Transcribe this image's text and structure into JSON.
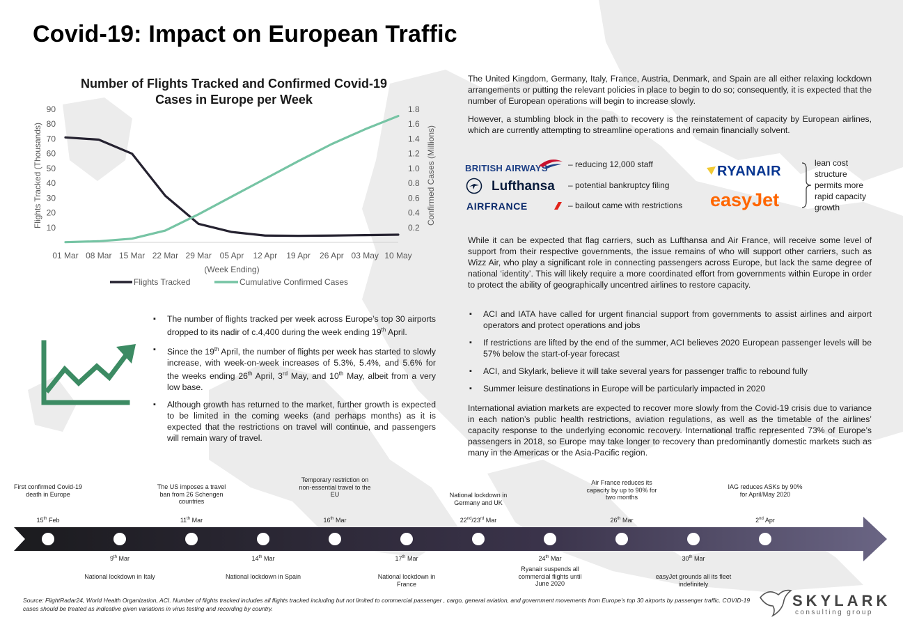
{
  "page": {
    "title": "Covid-19: Impact on European Traffic"
  },
  "chart_data": {
    "type": "line",
    "title": "Number of Flights Tracked and Confirmed Covid-19 Cases in Europe per Week",
    "title_lines": [
      "Number of Flights Tracked and Confirmed Covid-19",
      "Cases in Europe per Week"
    ],
    "xlabel": "(Week Ending)",
    "ylabel_left": "Flights Tracked (Thousands)",
    "ylabel_right": "Confirmed Cases (Millions)",
    "categories": [
      "01 Mar",
      "08 Mar",
      "15 Mar",
      "22 Mar",
      "29 Mar",
      "05 Apr",
      "12 Apr",
      "19 Apr",
      "26 Apr",
      "03 May",
      "10 May"
    ],
    "ylim_left": [
      0,
      90
    ],
    "yticks_left": [
      "",
      "10",
      "20",
      "30",
      "40",
      "50",
      "60",
      "70",
      "80",
      "90"
    ],
    "ylim_right": [
      0,
      1.8
    ],
    "yticks_right": [
      "",
      "0.2",
      "0.4",
      "0.6",
      "0.8",
      "1.0",
      "1.2",
      "1.4",
      "1.6",
      "1.8"
    ],
    "series": [
      {
        "name": "Flights Tracked",
        "axis": "left",
        "color": "#252230",
        "values": [
          71,
          69.5,
          60,
          31.5,
          12.5,
          7,
          4.6,
          4.4,
          4.6,
          4.9,
          5.2
        ]
      },
      {
        "name": "Cumulative Confirmed Cases",
        "axis": "right",
        "color": "#76c4a4",
        "values": [
          0.003,
          0.015,
          0.05,
          0.16,
          0.38,
          0.62,
          0.86,
          1.1,
          1.33,
          1.53,
          1.71
        ]
      }
    ],
    "legend_position": "bottom",
    "grid": false
  },
  "left_bullets": [
    {
      "text": "The number of flights tracked per week across Europe’s top 30 airports dropped to its nadir of c.4,400 during the week ending 19",
      "sup": "th",
      "tail": " April."
    },
    {
      "parts": [
        "Since the 19",
        "th",
        " April, the number of flights per week has started to slowly increase, with week-on-week increases of 5.3%, 5.4%, and 5.6% for the weeks ending 26",
        "th",
        " April, 3",
        "rd",
        " May, and 10",
        "th",
        " May, albeit from a very low base."
      ]
    },
    {
      "text": "Although growth has returned to the market, further growth is expected to be limited in the coming weeks (and perhaps months) as it is expected that the restrictions on travel will continue, and passengers will remain wary of travel."
    }
  ],
  "growth_icon": {
    "name": "growth-chart-icon",
    "color": "#3c8b63"
  },
  "right": {
    "para1": "The United Kingdom, Germany, Italy, France, Austria, Denmark, and Spain are all either relaxing lockdown arrangements or putting the relevant policies in place to begin to do so; consequently, it is expected that the number of European operations will begin to increase slowly.",
    "para2": "However, a stumbling block in the path to recovery is the reinstatement of capacity by European airlines, which are currently attempting to streamline operations and remain financially solvent.",
    "airlines": [
      {
        "logo": "BRITISH AIRWAYS",
        "desc": "– reducing 12,000 staff"
      },
      {
        "logo": "Lufthansa",
        "desc": "– potential bankruptcy filing"
      },
      {
        "logo": "AIRFRANCE",
        "desc": "– bailout came with restrictions"
      }
    ],
    "lowcost_logos": [
      "RYANAIR",
      "easyJet"
    ],
    "lean_lines": [
      "lean cost",
      "structure",
      "permits more",
      "rapid capacity",
      "growth"
    ],
    "para3": "While it can be expected that flag carriers, such as Lufthansa and Air France, will receive some level of support from their respective governments, the issue remains of who will support other carriers, such as Wizz Air, who play a significant role in connecting passengers across Europe, but lack the same degree of national ‘identity’. This will likely require a more coordinated effort from governments within Europe in order to protect the ability of geographically uncentred airlines to restore capacity.",
    "bullets": [
      "ACI and IATA have called for urgent financial support from governments to assist airlines and airport operators and protect operations and jobs",
      "If restrictions are lifted by the end of the summer, ACI believes 2020 European passenger levels will be 57% below the start-of-year forecast",
      "ACI, and Skylark, believe it will take several years for passenger traffic to rebound fully",
      "Summer leisure destinations in Europe will be particularly impacted in 2020"
    ],
    "para4": "International aviation markets are expected to recover more slowly from the Covid-19 crisis due to variance in each nation’s public health restrictions, aviation regulations, as well as the timetable of the airlines’ capacity response to the underlying economic recovery. International traffic represented 73% of Europe’s passengers in 2018, so Europe may take longer to recovery than predominantly domestic markets such as many in the Americas or the Asia-Pacific region."
  },
  "timeline": {
    "above": [
      {
        "label": "First confirmed Covid-19 death in Europe",
        "day": "15",
        "sup": "th",
        "month": " Feb"
      },
      {
        "label": "The US imposes a travel ban from 26 Schengen countries",
        "day": "11",
        "sup": "th",
        "month": " Mar"
      },
      {
        "label": "Temporary restriction on non-essential travel to the EU",
        "day": "16",
        "sup": "th",
        "month": " Mar"
      },
      {
        "label": "National lockdown in Germany and UK",
        "day": "22",
        "sup": "nd",
        "mid": "/23",
        "sup2": "rd",
        "month": " Mar"
      },
      {
        "label": "Air France reduces its capacity by up to 90% for two months",
        "day": "26",
        "sup": "th",
        "month": " Mar"
      },
      {
        "label": "IAG reduces ASKs by 90% for April/May 2020",
        "day": "2",
        "sup": "nd",
        "month": " Apr"
      }
    ],
    "below": [
      {
        "label": "National lockdown in Italy",
        "day": "9",
        "sup": "th",
        "month": " Mar"
      },
      {
        "label": "National lockdown in Spain",
        "day": "14",
        "sup": "th",
        "month": " Mar"
      },
      {
        "label": "National lockdown in France",
        "day": "17",
        "sup": "th",
        "month": " Mar"
      },
      {
        "label": "Ryanair suspends all commercial flights until June 2020",
        "day": "24",
        "sup": "th",
        "month": " Mar"
      },
      {
        "label": "easyJet grounds all its fleet indefinitely",
        "day": "30",
        "sup": "th",
        "month": " Mar"
      }
    ],
    "arrow_color": "#2a2535"
  },
  "source": "Source: FlightRadar24, World Health Organization, ACI. Number of flights tracked includes all flights tracked including but not limited to commercial passenger , cargo, general aviation, and government movements from Europe’s top 30 airports by passenger traffic. COVID-19 cases should be treated as indicative given variations in virus testing and recording by country.",
  "brand": {
    "name": "SKYLARK",
    "tagline": "consulting group"
  }
}
